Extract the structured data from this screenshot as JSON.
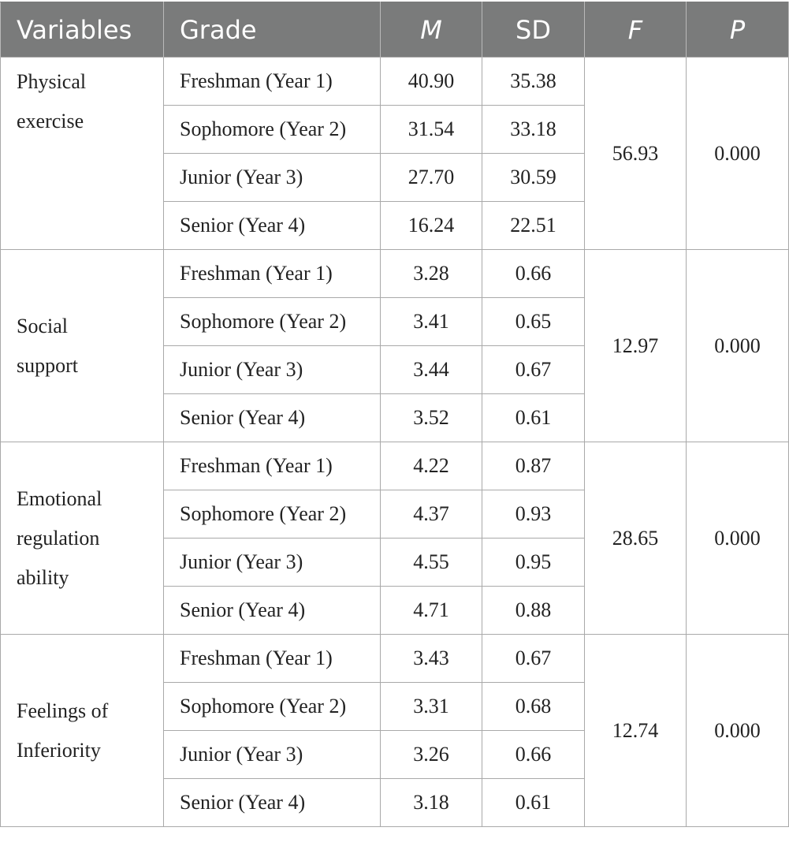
{
  "table": {
    "headers": {
      "variables": "Variables",
      "grade": "Grade",
      "m": "M",
      "sd": "SD",
      "f": "F",
      "p": "P"
    },
    "groups": [
      {
        "variable_lines": [
          "Physical",
          "exercise"
        ],
        "f": "56.93",
        "p": "0.000",
        "rows": [
          {
            "grade": "Freshman (Year 1)",
            "m": "40.90",
            "sd": "35.38"
          },
          {
            "grade": "Sophomore (Year 2)",
            "m": "31.54",
            "sd": "33.18"
          },
          {
            "grade": "Junior (Year 3)",
            "m": "27.70",
            "sd": "30.59"
          },
          {
            "grade": "Senior (Year 4)",
            "m": "16.24",
            "sd": "22.51"
          }
        ]
      },
      {
        "variable_lines": [
          "Social",
          "support"
        ],
        "f": "12.97",
        "p": "0.000",
        "rows": [
          {
            "grade": "Freshman (Year 1)",
            "m": "3.28",
            "sd": "0.66"
          },
          {
            "grade": "Sophomore (Year 2)",
            "m": "3.41",
            "sd": "0.65"
          },
          {
            "grade": "Junior (Year 3)",
            "m": "3.44",
            "sd": "0.67"
          },
          {
            "grade": "Senior (Year 4)",
            "m": "3.52",
            "sd": "0.61"
          }
        ]
      },
      {
        "variable_lines": [
          "Emotional",
          "regulation",
          "ability"
        ],
        "f": "28.65",
        "p": "0.000",
        "rows": [
          {
            "grade": "Freshman (Year 1)",
            "m": "4.22",
            "sd": "0.87"
          },
          {
            "grade": "Sophomore (Year 2)",
            "m": "4.37",
            "sd": "0.93"
          },
          {
            "grade": "Junior (Year 3)",
            "m": "4.55",
            "sd": "0.95"
          },
          {
            "grade": "Senior (Year 4)",
            "m": "4.71",
            "sd": "0.88"
          }
        ]
      },
      {
        "variable_lines": [
          "Feelings of",
          "Inferiority"
        ],
        "f": "12.74",
        "p": "0.000",
        "rows": [
          {
            "grade": "Freshman (Year 1)",
            "m": "3.43",
            "sd": "0.67"
          },
          {
            "grade": "Sophomore (Year 2)",
            "m": "3.31",
            "sd": "0.68"
          },
          {
            "grade": "Junior (Year 3)",
            "m": "3.26",
            "sd": "0.66"
          },
          {
            "grade": "Senior (Year 4)",
            "m": "3.18",
            "sd": "0.61"
          }
        ]
      }
    ]
  }
}
